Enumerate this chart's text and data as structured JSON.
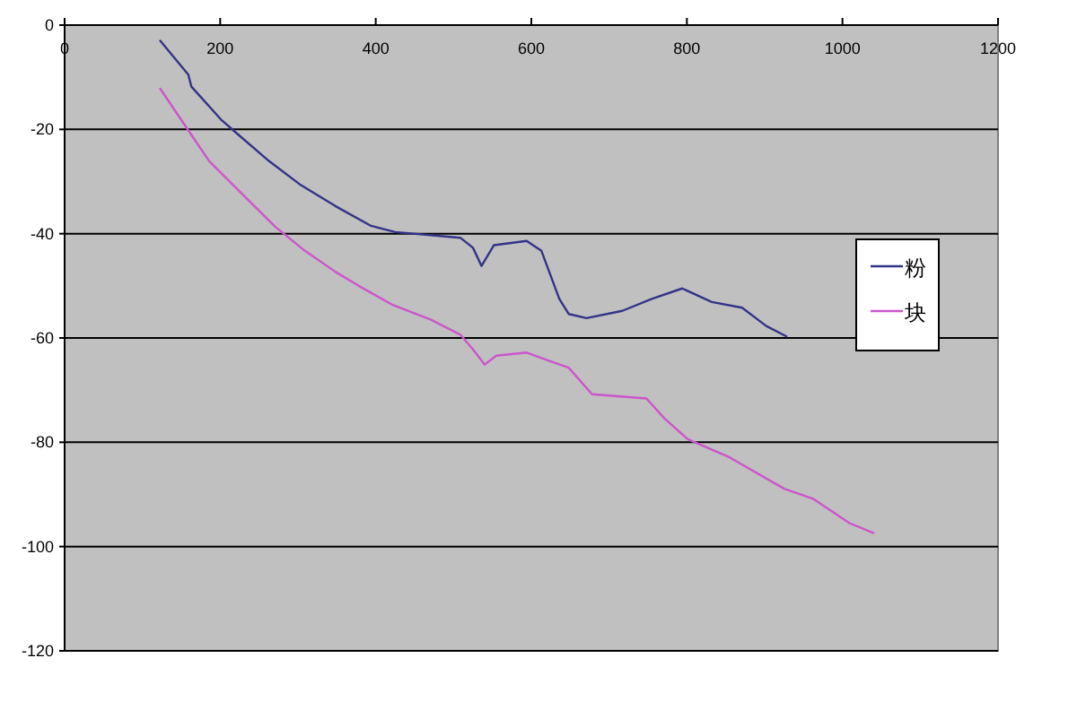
{
  "chart_data": {
    "type": "line",
    "xlim": [
      0,
      1200
    ],
    "ylim": [
      -120,
      0
    ],
    "xticks": [
      0,
      200,
      400,
      600,
      800,
      1000,
      1200
    ],
    "yticks": [
      -120,
      -100,
      -80,
      -60,
      -40,
      -20,
      0
    ],
    "grid": "y",
    "legend": "right",
    "marker": "none",
    "line_style": "solid",
    "series": [
      {
        "name": "粉",
        "color": "#333388",
        "x": [
          123,
          159,
          163,
          201,
          217,
          263,
          302,
          348,
          394,
          425,
          509,
          525,
          536,
          552,
          594,
          613,
          636,
          648,
          671,
          717,
          755,
          794,
          832,
          871,
          902,
          928
        ],
        "values": [
          -3,
          -9.5,
          -11.8,
          -18.1,
          -20.2,
          -26.1,
          -30.5,
          -34.7,
          -38.5,
          -39.7,
          -40.8,
          -42.7,
          -46.2,
          -42.2,
          -41.4,
          -43.3,
          -52.5,
          -55.4,
          -56.2,
          -54.8,
          -52.5,
          -50.5,
          -53.1,
          -54.2,
          -57.7,
          -59.7
        ]
      },
      {
        "name": "块",
        "color": "#cc55cc",
        "x": [
          123,
          155,
          186,
          225,
          271,
          309,
          348,
          378,
          421,
          471,
          509,
          525,
          540,
          555,
          594,
          625,
          648,
          678,
          748,
          771,
          801,
          855,
          925,
          963,
          1009,
          1040
        ],
        "values": [
          -12.2,
          -19.3,
          -26.1,
          -31.9,
          -38.7,
          -43.3,
          -47.3,
          -50,
          -53.6,
          -56.5,
          -59.4,
          -62.2,
          -65.1,
          -63.4,
          -62.8,
          -64.5,
          -65.7,
          -70.8,
          -71.6,
          -75.4,
          -79.4,
          -82.9,
          -88.9,
          -90.9,
          -95.5,
          -97.4
        ]
      }
    ]
  }
}
